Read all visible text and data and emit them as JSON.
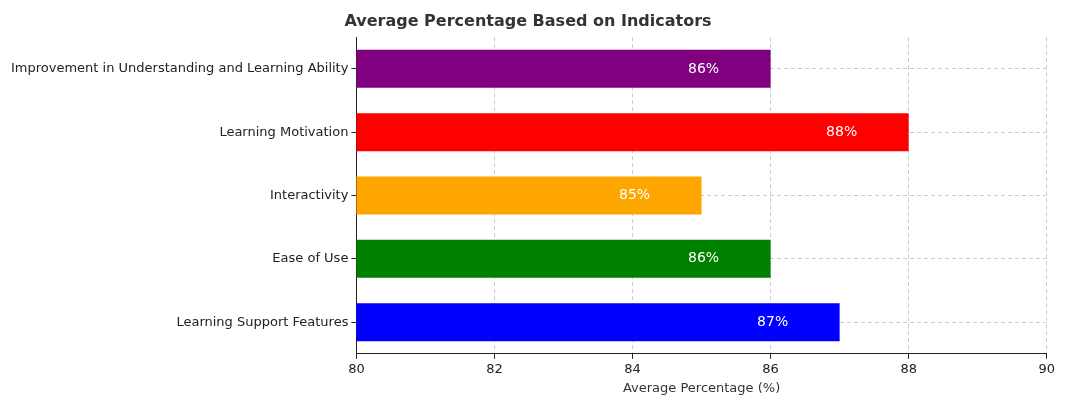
{
  "chart_data": {
    "type": "bar",
    "orientation": "horizontal",
    "title": "Average Percentage Based on Indicators",
    "xlabel": "Average Percentage (%)",
    "categories": [
      "Improvement in Understanding and Learning Ability",
      "Learning Motivation",
      "Interactivity",
      "Ease of Use",
      "Learning Support Features"
    ],
    "values": [
      86,
      88,
      85,
      86,
      87
    ],
    "colors": [
      "#800080",
      "#ff0000",
      "#ffa500",
      "#008000",
      "#0000ff"
    ],
    "value_labels": [
      "86%",
      "88%",
      "85%",
      "86%",
      "87%"
    ],
    "xlim": [
      80,
      90
    ],
    "xticks": [
      80,
      82,
      84,
      86,
      88,
      90
    ],
    "grid": true,
    "line_style": "dashed"
  }
}
